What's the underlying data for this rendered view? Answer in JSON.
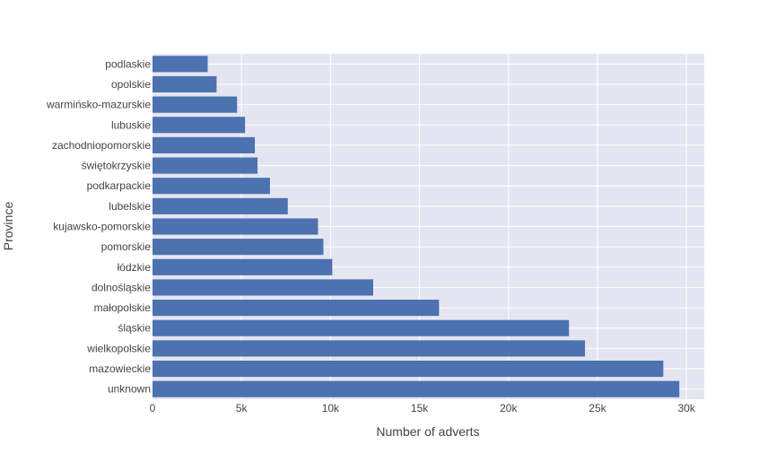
{
  "chart_data": {
    "type": "bar",
    "orientation": "horizontal",
    "title": "",
    "xlabel": "Number of adverts",
    "ylabel": "Province",
    "xlim": [
      0,
      31000
    ],
    "x_ticks": [
      0,
      5000,
      10000,
      15000,
      20000,
      25000,
      30000
    ],
    "x_tick_labels": [
      "0",
      "5k",
      "10k",
      "15k",
      "20k",
      "25k",
      "30k"
    ],
    "grid": true,
    "legend": "none",
    "categories": [
      "unknown",
      "mazowieckie",
      "wielkopolskie",
      "śląskie",
      "małopolskie",
      "dolnośląskie",
      "łódzkie",
      "pomorskie",
      "kujawsko-pomorskie",
      "lubelskie",
      "podkarpackie",
      "świętokrzyskie",
      "zachodniopomorskie",
      "lubuskie",
      "warmińsko-mazurskie",
      "opolskie",
      "podlaskie"
    ],
    "values": [
      29600,
      28700,
      24300,
      23400,
      16100,
      12400,
      10100,
      9600,
      9300,
      7600,
      6600,
      5900,
      5750,
      5200,
      4750,
      3600,
      3100
    ],
    "colors": {
      "bar": "#4c72b0",
      "plot_background": "#e5e5f1",
      "grid": "#ffffff",
      "text": "#444444",
      "page_background": "#ffffff"
    }
  }
}
